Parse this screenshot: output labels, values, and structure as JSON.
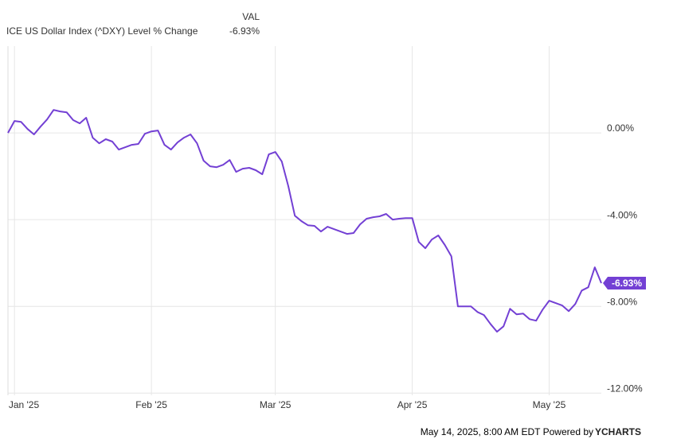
{
  "chart_data": {
    "type": "line",
    "column_header": "VAL",
    "categories": [
      null,
      "Jan '25",
      null,
      null,
      null,
      null,
      null,
      null,
      null,
      null,
      null,
      null,
      null,
      null,
      null,
      null,
      null,
      null,
      null,
      null,
      null,
      null,
      "Feb '25",
      null,
      null,
      null,
      null,
      null,
      null,
      null,
      null,
      null,
      null,
      null,
      null,
      null,
      null,
      null,
      null,
      null,
      null,
      "Mar '25",
      null,
      null,
      null,
      null,
      null,
      null,
      null,
      null,
      null,
      null,
      null,
      null,
      null,
      null,
      null,
      null,
      null,
      null,
      null,
      null,
      "Apr '25",
      null,
      null,
      null,
      null,
      null,
      null,
      null,
      null,
      null,
      null,
      null,
      null,
      null,
      null,
      null,
      null,
      null,
      null,
      null,
      null,
      "May '25",
      null,
      null,
      null,
      null,
      null,
      null,
      null,
      null
    ],
    "series": [
      {
        "name": "ICE US Dollar Index (^DXY) Level % Change",
        "color": "#7340d4",
        "last_value_label": "-6.93%",
        "values": [
          0.0,
          0.55,
          0.51,
          0.18,
          -0.07,
          0.29,
          0.62,
          1.06,
          0.99,
          0.95,
          0.59,
          0.44,
          0.7,
          -0.22,
          -0.48,
          -0.29,
          -0.4,
          -0.77,
          -0.66,
          -0.55,
          -0.51,
          -0.04,
          0.07,
          0.11,
          -0.55,
          -0.77,
          -0.44,
          -0.22,
          -0.07,
          -0.48,
          -1.28,
          -1.54,
          -1.58,
          -1.47,
          -1.25,
          -1.8,
          -1.65,
          -1.61,
          -1.72,
          -1.91,
          -0.99,
          -0.88,
          -1.32,
          -2.46,
          -3.82,
          -4.07,
          -4.26,
          -4.29,
          -4.55,
          -4.33,
          -4.44,
          -4.55,
          -4.66,
          -4.62,
          -4.22,
          -3.96,
          -3.89,
          -3.85,
          -3.74,
          -4.0,
          -3.96,
          -3.93,
          -3.93,
          -5.03,
          -5.32,
          -4.92,
          -4.73,
          -5.17,
          -5.69,
          -8.0,
          -8.0,
          -8.0,
          -8.26,
          -8.4,
          -8.81,
          -9.17,
          -8.92,
          -8.11,
          -8.37,
          -8.33,
          -8.59,
          -8.66,
          -8.15,
          -7.74,
          -7.85,
          -7.96,
          -8.22,
          -7.89,
          -7.27,
          -7.12,
          -6.2,
          -6.93
        ]
      }
    ],
    "ylim": [
      -12.1,
      4.0
    ],
    "yticks": [
      {
        "value": 0,
        "label": "0.00%"
      },
      {
        "value": -4,
        "label": "-4.00%"
      },
      {
        "value": -8,
        "label": "-8.00%"
      },
      {
        "value": -12,
        "label": "-12.00%"
      }
    ],
    "grid": true,
    "footer": "May 14, 2025, 8:00 AM EDT Powered by",
    "brand": "YCHARTS"
  }
}
